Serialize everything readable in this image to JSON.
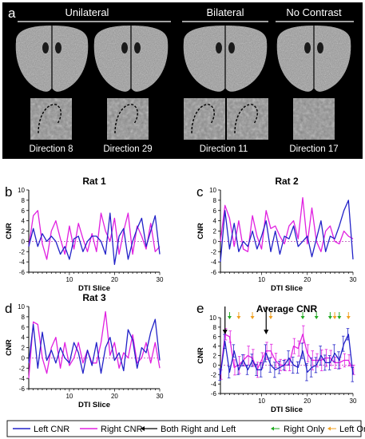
{
  "figure": {
    "panel_a": {
      "letter": "a",
      "groups": [
        {
          "label": "Unilateral"
        },
        {
          "label": "Bilateral"
        },
        {
          "label": "No Contrast"
        }
      ],
      "captions": [
        "Direction 8",
        "Direction 29",
        "Direction 11",
        "Direction 17"
      ]
    },
    "panel_letters": [
      "b",
      "c",
      "d",
      "e"
    ]
  },
  "legend": {
    "items": [
      {
        "label": "Left CNR",
        "color": "#2222c8"
      },
      {
        "label": "Right CNR",
        "color": "#e020e0"
      },
      {
        "label": "Both Right and Left",
        "color": "#000000"
      },
      {
        "label": "Right Only",
        "color": "#22aa22"
      },
      {
        "label": "Left Only",
        "color": "#f0a020"
      }
    ]
  },
  "chart_data": [
    {
      "type": "line",
      "panel": "b",
      "title": "Rat 1",
      "xlabel": "DTI Slice",
      "ylabel": "CNR",
      "xlim": [
        1,
        30
      ],
      "ylim": [
        -6,
        10
      ],
      "xticks": [
        10,
        20,
        30
      ],
      "yticks": [
        -6,
        -4,
        -2,
        0,
        2,
        4,
        6,
        8,
        10
      ],
      "zero_line": "dotted",
      "x": [
        1,
        2,
        3,
        4,
        5,
        6,
        7,
        8,
        9,
        10,
        11,
        12,
        13,
        14,
        15,
        16,
        17,
        18,
        19,
        20,
        21,
        22,
        23,
        24,
        25,
        26,
        27,
        28,
        29,
        30
      ],
      "series": [
        {
          "name": "Left CNR",
          "color": "#2222c8",
          "values": [
            -1,
            2.5,
            -1,
            1.5,
            0,
            1,
            0,
            -2.5,
            -1,
            -3.5,
            0.5,
            1,
            -2,
            0,
            1,
            1,
            0,
            -2.5,
            5.5,
            -4.5,
            1,
            2.5,
            -3.5,
            0,
            2.5,
            4.5,
            -1,
            2,
            5,
            -2.5
          ]
        },
        {
          "name": "Right CNR",
          "color": "#e020e0",
          "values": [
            -1,
            5,
            6,
            -0.5,
            -3.5,
            2,
            4,
            0.5,
            -2.5,
            3,
            -1.5,
            3.5,
            0.5,
            -2,
            1.5,
            -2,
            5.5,
            2,
            0,
            4.5,
            -2.5,
            2,
            5.5,
            -2.5,
            3,
            1,
            -1.5,
            3.5,
            -2,
            -1
          ]
        }
      ]
    },
    {
      "type": "line",
      "panel": "c",
      "title": "Rat 2",
      "xlabel": "DTI Slice",
      "ylabel": "CNR",
      "xlim": [
        1,
        30
      ],
      "ylim": [
        -6,
        10
      ],
      "xticks": [
        10,
        20,
        30
      ],
      "yticks": [
        -6,
        -4,
        -2,
        0,
        2,
        4,
        6,
        8,
        10
      ],
      "zero_line": "dotted",
      "x": [
        1,
        2,
        3,
        4,
        5,
        6,
        7,
        8,
        9,
        10,
        11,
        12,
        13,
        14,
        15,
        16,
        17,
        18,
        19,
        20,
        21,
        22,
        23,
        24,
        25,
        26,
        27,
        28,
        29,
        30
      ],
      "series": [
        {
          "name": "Left CNR",
          "color": "#2222c8",
          "values": [
            -4,
            6,
            -1.5,
            3.5,
            -2,
            0,
            -1,
            2,
            -1.5,
            1,
            4,
            -2,
            2,
            -2.5,
            1,
            0.5,
            3,
            -1,
            0,
            1,
            -3,
            0.5,
            4,
            -2,
            1,
            0.5,
            3,
            6,
            8,
            -3.5
          ]
        },
        {
          "name": "Right CNR",
          "color": "#e020e0",
          "values": [
            0,
            7,
            4.5,
            -1,
            4,
            -1.5,
            -2,
            5,
            1,
            -1.5,
            6,
            2.5,
            3,
            1,
            -0.5,
            3,
            4,
            0.5,
            8.5,
            -0.5,
            6.5,
            0,
            -2,
            2,
            3,
            0,
            -0.5,
            2,
            1,
            0.5
          ]
        }
      ]
    },
    {
      "type": "line",
      "panel": "d",
      "title": "Rat 3",
      "xlabel": "DTI Slice",
      "ylabel": "CNR",
      "xlim": [
        1,
        30
      ],
      "ylim": [
        -6,
        10
      ],
      "xticks": [
        10,
        20,
        30
      ],
      "yticks": [
        -6,
        -4,
        -2,
        0,
        2,
        4,
        6,
        8,
        10
      ],
      "zero_line": "dotted",
      "x": [
        1,
        2,
        3,
        4,
        5,
        6,
        7,
        8,
        9,
        10,
        11,
        12,
        13,
        14,
        15,
        16,
        17,
        18,
        19,
        20,
        21,
        22,
        23,
        24,
        25,
        26,
        27,
        28,
        29,
        30
      ],
      "series": [
        {
          "name": "Left CNR",
          "color": "#2222c8",
          "values": [
            -1,
            6.5,
            -2,
            5,
            -0.5,
            1.5,
            -1,
            2,
            0,
            -1,
            3,
            1,
            -3,
            1.5,
            -1.5,
            3,
            -3,
            2,
            4,
            -0.5,
            1,
            -2.5,
            5.5,
            3.5,
            -2,
            2,
            1,
            5,
            7.5,
            -0.5
          ]
        },
        {
          "name": "Right CNR",
          "color": "#e020e0",
          "values": [
            -4,
            7,
            6.5,
            0,
            -3,
            2,
            4,
            -2,
            3,
            -1.5,
            0,
            3,
            -1,
            1.5,
            -1,
            -1,
            3,
            9,
            0.5,
            3,
            -2,
            1,
            0,
            4.5,
            -1,
            0,
            3,
            -1,
            3,
            -2
          ]
        }
      ]
    },
    {
      "type": "line",
      "panel": "e",
      "title": "Average CNR",
      "xlabel": "DTI Slice",
      "ylabel": "CNR",
      "xlim": [
        1,
        30
      ],
      "ylim": [
        -6,
        10
      ],
      "xticks": [
        10,
        20,
        30
      ],
      "yticks": [
        -6,
        -4,
        -2,
        0,
        2,
        4,
        6,
        8,
        10
      ],
      "zero_line": "dotted",
      "error_bars": true,
      "x": [
        1,
        2,
        3,
        4,
        5,
        6,
        7,
        8,
        9,
        10,
        11,
        12,
        13,
        14,
        15,
        16,
        17,
        18,
        19,
        20,
        21,
        22,
        23,
        24,
        25,
        26,
        27,
        28,
        29,
        30
      ],
      "series": [
        {
          "name": "Left CNR",
          "color": "#2222c8",
          "values": [
            -2,
            5,
            -1.5,
            3,
            -1,
            1,
            -1,
            1,
            -1,
            -1,
            2.5,
            0,
            -1,
            -0.5,
            0,
            1.5,
            0,
            -0.5,
            3,
            -1.5,
            -0.5,
            0,
            2,
            0.5,
            0.5,
            2.5,
            1,
            4.5,
            6.5,
            -2
          ],
          "errors": [
            1.2,
            1.5,
            1.2,
            1.3,
            1,
            1.2,
            1,
            1.3,
            1.2,
            1.5,
            1.8,
            1.5,
            1.6,
            1.3,
            1,
            1.5,
            1.7,
            1.2,
            1.6,
            1.8,
            2,
            1.6,
            2,
            1.6,
            1.5,
            1.8,
            1.8,
            1.6,
            1.2,
            1.5
          ]
        },
        {
          "name": "Right CNR",
          "color": "#e020e0",
          "values": [
            -2,
            6.5,
            6,
            -0.5,
            0,
            1,
            2,
            1.5,
            -1,
            1,
            3,
            3,
            1,
            0,
            0,
            0,
            4,
            3.5,
            6.5,
            2.5,
            1,
            1,
            1,
            1.5,
            1.5,
            0.5,
            0.5,
            1,
            1,
            -1
          ],
          "errors": [
            1,
            1.2,
            1.2,
            1.6,
            1.8,
            1.2,
            2,
            1.8,
            1.6,
            1.6,
            1.8,
            1.4,
            1.5,
            1.2,
            1.2,
            1.2,
            1.6,
            1.6,
            1.8,
            1.8,
            2,
            1.4,
            2.2,
            1.8,
            1.6,
            1.2,
            1.2,
            1.4,
            1.2,
            1
          ]
        }
      ],
      "markers": [
        {
          "type": "both",
          "x": 2,
          "color": "#000000"
        },
        {
          "type": "both",
          "x": 11,
          "color": "#000000"
        },
        {
          "type": "right",
          "x": 3,
          "color": "#22aa22"
        },
        {
          "type": "right",
          "x": 19,
          "color": "#22aa22"
        },
        {
          "type": "right",
          "x": 22,
          "color": "#22aa22"
        },
        {
          "type": "right",
          "x": 25,
          "color": "#22aa22"
        },
        {
          "type": "right",
          "x": 27,
          "color": "#22aa22"
        },
        {
          "type": "left",
          "x": 5,
          "color": "#f0a020"
        },
        {
          "type": "left",
          "x": 8,
          "color": "#f0a020"
        },
        {
          "type": "left",
          "x": 12,
          "color": "#f0a020"
        },
        {
          "type": "left",
          "x": 26,
          "color": "#f0a020"
        },
        {
          "type": "left",
          "x": 29,
          "color": "#f0a020"
        }
      ]
    }
  ]
}
